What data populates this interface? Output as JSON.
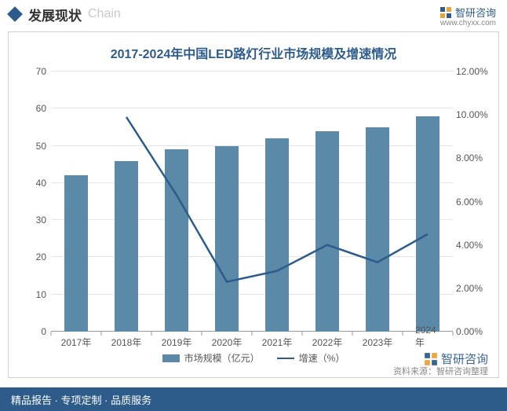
{
  "header": {
    "title": "发展现状",
    "subtitle": "Chain"
  },
  "brand": {
    "name": "智研咨询",
    "url": "www.chyxx.com",
    "color": "#2e5c8a"
  },
  "chart": {
    "title": "2017-2024年中国LED路灯行业市场规模及增速情况",
    "title_color": "#2e5c8a",
    "title_fontsize": 16,
    "categories": [
      "2017年",
      "2018年",
      "2019年",
      "2020年",
      "2021年",
      "2022年",
      "2023年",
      "2024年"
    ],
    "bar_values": [
      42,
      46,
      49,
      50,
      52,
      54,
      55,
      58
    ],
    "line_values": [
      null,
      9.9,
      6.3,
      2.3,
      2.8,
      4.0,
      3.2,
      4.5
    ],
    "bar_label": "市场规模（亿元）",
    "line_label": "增速（%）",
    "bar_color": "#5a8aa8",
    "line_color": "#2e5c8a",
    "y_left": {
      "min": 0,
      "max": 70,
      "step": 10
    },
    "y_right": {
      "min": 0,
      "max": 12,
      "step": 2,
      "format": "percent"
    },
    "grid_color": "#e4e4e4",
    "axis_color": "#999999",
    "label_fontsize": 12,
    "bar_width_ratio": 0.46,
    "source": "资料来源：智研咨询整理"
  },
  "footer": {
    "text": "精品报告 · 专项定制 · 品质服务"
  }
}
